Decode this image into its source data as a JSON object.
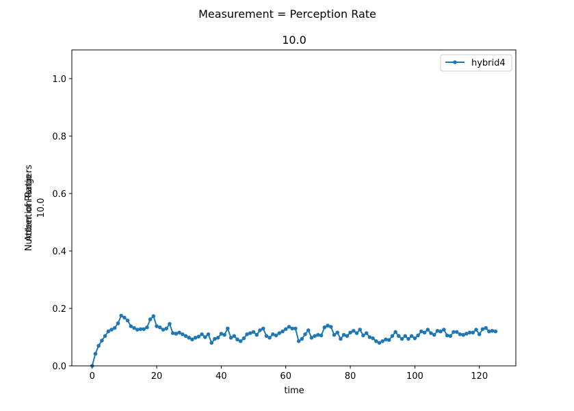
{
  "suptitle": "Measurement = Perception Rate",
  "chart_data": {
    "type": "line",
    "title": "10.0",
    "xlabel": "time",
    "ylabel_lines": [
      "Number of Rangers",
      "Attention Ratio",
      "10.0"
    ],
    "xlim": [
      -6.3,
      131.3
    ],
    "ylim": [
      0.0,
      1.1
    ],
    "xticks": [
      0,
      20,
      40,
      60,
      80,
      100,
      120
    ],
    "yticks": [
      0.0,
      0.2,
      0.4,
      0.6,
      0.8,
      1.0
    ],
    "ytick_labels": [
      "0.0",
      "0.2",
      "0.4",
      "0.6",
      "0.8",
      "1.0"
    ],
    "grid": false,
    "legend_position": "upper-right",
    "series": [
      {
        "name": "hybrid4",
        "color": "#1f77b4",
        "marker": "circle",
        "x": [
          0,
          1,
          2,
          3,
          4,
          5,
          6,
          7,
          8,
          9,
          10,
          11,
          12,
          13,
          14,
          15,
          16,
          17,
          18,
          19,
          20,
          21,
          22,
          23,
          24,
          25,
          26,
          27,
          28,
          29,
          30,
          31,
          32,
          33,
          34,
          35,
          36,
          37,
          38,
          39,
          40,
          41,
          42,
          43,
          44,
          45,
          46,
          47,
          48,
          49,
          50,
          51,
          52,
          53,
          54,
          55,
          56,
          57,
          58,
          59,
          60,
          61,
          62,
          63,
          64,
          65,
          66,
          67,
          68,
          69,
          70,
          71,
          72,
          73,
          74,
          75,
          76,
          77,
          78,
          79,
          80,
          81,
          82,
          83,
          84,
          85,
          86,
          87,
          88,
          89,
          90,
          91,
          92,
          93,
          94,
          95,
          96,
          97,
          98,
          99,
          100,
          101,
          102,
          103,
          104,
          105,
          106,
          107,
          108,
          109,
          110,
          111,
          112,
          113,
          114,
          115,
          116,
          117,
          118,
          119,
          120,
          121,
          122,
          123,
          124,
          125
        ],
        "y": [
          0.0,
          0.042,
          0.07,
          0.088,
          0.104,
          0.12,
          0.126,
          0.132,
          0.148,
          0.175,
          0.168,
          0.158,
          0.138,
          0.132,
          0.126,
          0.128,
          0.128,
          0.134,
          0.162,
          0.173,
          0.138,
          0.134,
          0.126,
          0.13,
          0.146,
          0.114,
          0.112,
          0.116,
          0.11,
          0.104,
          0.098,
          0.092,
          0.098,
          0.102,
          0.11,
          0.1,
          0.11,
          0.08,
          0.094,
          0.098,
          0.112,
          0.108,
          0.13,
          0.098,
          0.104,
          0.092,
          0.086,
          0.096,
          0.11,
          0.114,
          0.118,
          0.108,
          0.124,
          0.13,
          0.104,
          0.098,
          0.11,
          0.106,
          0.114,
          0.12,
          0.128,
          0.136,
          0.13,
          0.13,
          0.086,
          0.094,
          0.11,
          0.124,
          0.098,
          0.104,
          0.108,
          0.106,
          0.134,
          0.14,
          0.136,
          0.108,
          0.116,
          0.094,
          0.108,
          0.104,
          0.116,
          0.122,
          0.114,
          0.126,
          0.106,
          0.114,
          0.1,
          0.096,
          0.086,
          0.08,
          0.086,
          0.092,
          0.09,
          0.104,
          0.118,
          0.104,
          0.094,
          0.104,
          0.094,
          0.104,
          0.096,
          0.106,
          0.12,
          0.116,
          0.126,
          0.114,
          0.108,
          0.122,
          0.12,
          0.126,
          0.106,
          0.104,
          0.118,
          0.118,
          0.11,
          0.108,
          0.112,
          0.116,
          0.116,
          0.126,
          0.11,
          0.128,
          0.132,
          0.12,
          0.122,
          0.12
        ]
      }
    ]
  }
}
